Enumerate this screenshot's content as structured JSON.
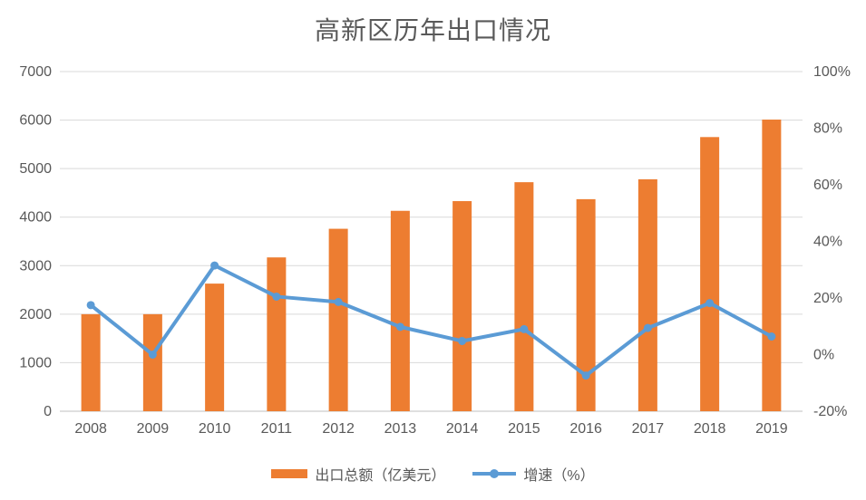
{
  "title": "高新区历年出口情况",
  "colors": {
    "background": "#FFFFFF",
    "bar": "#ED7D31",
    "line": "#5B9BD5",
    "grid": "#D9D9D9",
    "axis": "#BFBFBF",
    "text": "#595959"
  },
  "legend": {
    "bar_label": "出口总额（亿美元）",
    "line_label": "增速（%）"
  },
  "chart_data": {
    "type": "combo",
    "title": "高新区历年出口情况",
    "categories": [
      "2008",
      "2009",
      "2010",
      "2011",
      "2012",
      "2013",
      "2014",
      "2015",
      "2016",
      "2017",
      "2018",
      "2019"
    ],
    "series": [
      {
        "name": "出口总额（亿美元）",
        "type": "bar",
        "axis": "left",
        "color": "#ED7D31",
        "values": [
          2000,
          2000,
          2630,
          3170,
          3760,
          4130,
          4330,
          4720,
          4370,
          4780,
          5650,
          6010
        ]
      },
      {
        "name": "增速（%）",
        "type": "line",
        "axis": "right",
        "color": "#5B9BD5",
        "marker": "circle",
        "values": [
          17.5,
          0,
          31.5,
          20.5,
          18.6,
          9.8,
          4.8,
          9.0,
          -7.4,
          9.4,
          18.2,
          6.4
        ]
      }
    ],
    "left_axis": {
      "min": 0,
      "max": 7000,
      "step": 1000,
      "tick_values": [
        0,
        1000,
        2000,
        3000,
        4000,
        5000,
        6000,
        7000
      ],
      "tick_labels": [
        "0",
        "1000",
        "2000",
        "3000",
        "4000",
        "5000",
        "6000",
        "7000"
      ]
    },
    "right_axis": {
      "min": -20,
      "max": 100,
      "step": 20,
      "tick_values": [
        -20,
        0,
        20,
        40,
        60,
        80,
        100
      ],
      "tick_labels": [
        "-20%",
        "0%",
        "20%",
        "40%",
        "60%",
        "80%",
        "100%"
      ]
    },
    "grid": "horizontal, left-axis intervals only",
    "legend_position": "bottom-center",
    "xlabel": "",
    "ylabel": "",
    "y2label": ""
  }
}
